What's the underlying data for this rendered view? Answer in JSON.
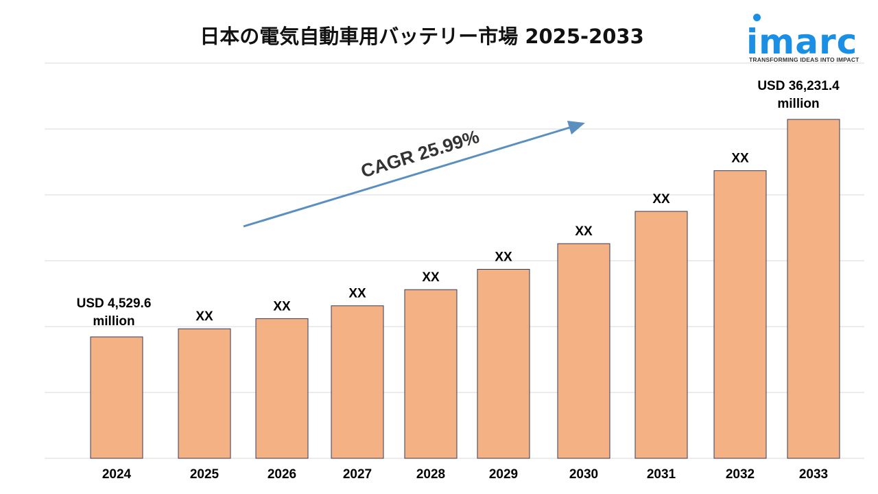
{
  "title": "日本の電気自動車用バッテリー市場 2025-2033",
  "logo": {
    "name": "imarc",
    "tagline": "TRANSFORMING IDEAS INTO IMPACT",
    "color": "#1a8fe3"
  },
  "chart_data": {
    "type": "bar",
    "title": "日本の電気自動車用バッテリー市場 2025-2033",
    "xlabel": "",
    "ylabel": "",
    "categories": [
      "2024",
      "2025",
      "2026",
      "2027",
      "2028",
      "2029",
      "2030",
      "2031",
      "2032",
      "2033"
    ],
    "values": [
      4529.6,
      5707,
      7191,
      9059,
      11413,
      14379,
      18117,
      22825,
      28758,
      36231.4
    ],
    "data_labels": [
      "USD 4,529.6 million",
      "XX",
      "XX",
      "XX",
      "XX",
      "XX",
      "XX",
      "XX",
      "XX",
      "USD 36,231.4 million"
    ],
    "annotation": "CAGR 25.99%",
    "bar_color": "#f4b183",
    "arrow_color": "#5b8fc0",
    "grid": true,
    "legend": "none"
  }
}
